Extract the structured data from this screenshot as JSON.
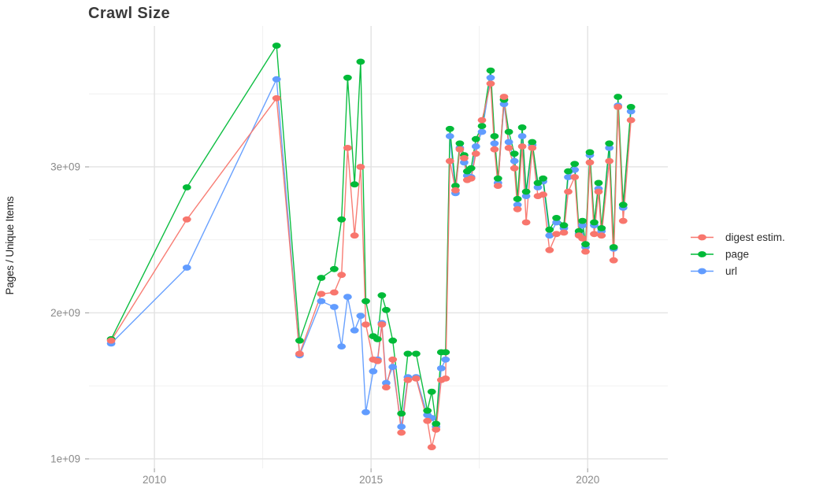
{
  "page": {
    "background": "#ffffff"
  },
  "legend": {
    "position": "right",
    "items": [
      {
        "label": "digest estim.",
        "color": "#F8766D"
      },
      {
        "label": "page",
        "color": "#00BA38"
      },
      {
        "label": "url",
        "color": "#619CFF"
      }
    ]
  },
  "chart_data": {
    "type": "line",
    "title": "Crawl Size",
    "xlabel": "",
    "ylabel": "Pages / Unique Items",
    "grid": true,
    "legend_position": "right",
    "x_axis": {
      "unit": "year",
      "lim": [
        2008.49,
        2021.85
      ],
      "ticks": [
        2010,
        2015,
        2020
      ],
      "tick_labels": [
        "2010",
        "2015",
        "2020"
      ],
      "minor_ticks": [
        2012.5,
        2017.5
      ]
    },
    "y_axis": {
      "unit": "pages / unique items",
      "lim": [
        935000000,
        3965000000
      ],
      "ticks": [
        1000000000,
        2000000000,
        3000000000
      ],
      "tick_labels": [
        "1e+09",
        "2e+09",
        "3e+09"
      ],
      "minor_ticks": [
        1500000000,
        2500000000,
        3500000000
      ]
    },
    "x": [
      2009.0,
      2010.75,
      2012.82,
      2013.35,
      2013.85,
      2014.15,
      2014.32,
      2014.46,
      2014.62,
      2014.76,
      2014.88,
      2015.05,
      2015.15,
      2015.25,
      2015.35,
      2015.5,
      2015.7,
      2015.85,
      2016.04,
      2016.3,
      2016.4,
      2016.5,
      2016.62,
      2016.72,
      2016.82,
      2016.95,
      2017.05,
      2017.15,
      2017.22,
      2017.31,
      2017.42,
      2017.56,
      2017.76,
      2017.85,
      2017.93,
      2018.07,
      2018.18,
      2018.31,
      2018.38,
      2018.49,
      2018.58,
      2018.72,
      2018.85,
      2018.97,
      2019.12,
      2019.28,
      2019.45,
      2019.55,
      2019.7,
      2019.8,
      2019.88,
      2019.95,
      2020.05,
      2020.15,
      2020.25,
      2020.32,
      2020.5,
      2020.6,
      2020.7,
      2020.82,
      2021.0
    ],
    "series": [
      {
        "name": "digest estim.",
        "color": "#F8766D",
        "values": [
          1810000000.0,
          2640000000.0,
          3470000000.0,
          1720000000.0,
          2130000000.0,
          2140000000.0,
          2260000000.0,
          3130000000.0,
          2530000000.0,
          3000000000.0,
          1920000000.0,
          1680000000.0,
          1670000000.0,
          1920000000.0,
          1490000000.0,
          1680000000.0,
          1180000000.0,
          1540000000.0,
          1550000000.0,
          1260000000.0,
          1080000000.0,
          1200000000.0,
          1540000000.0,
          1550000000.0,
          3040000000.0,
          2840000000.0,
          3120000000.0,
          3060000000.0,
          2910000000.0,
          2920000000.0,
          3090000000.0,
          3320000000.0,
          3570000000.0,
          3120000000.0,
          2870000000.0,
          3480000000.0,
          3130000000.0,
          2990000000.0,
          2710000000.0,
          3140000000.0,
          2620000000.0,
          3130000000.0,
          2800000000.0,
          2810000000.0,
          2430000000.0,
          2540000000.0,
          2550000000.0,
          2830000000.0,
          2930000000.0,
          2530000000.0,
          2510000000.0,
          2420000000.0,
          3030000000.0,
          2540000000.0,
          2830000000.0,
          2530000000.0,
          3040000000.0,
          2360000000.0,
          3410000000.0,
          2630000000.0,
          3320000000.0
        ]
      },
      {
        "name": "page",
        "color": "#00BA38",
        "values": [
          1820000000.0,
          2860000000.0,
          3830000000.0,
          1810000000.0,
          2240000000.0,
          2300000000.0,
          2640000000.0,
          3610000000.0,
          2880000000.0,
          3720000000.0,
          2080000000.0,
          1840000000.0,
          1820000000.0,
          2120000000.0,
          2020000000.0,
          1810000000.0,
          1310000000.0,
          1720000000.0,
          1720000000.0,
          1330000000.0,
          1460000000.0,
          1240000000.0,
          1730000000.0,
          1730000000.0,
          3260000000.0,
          2870000000.0,
          3160000000.0,
          3080000000.0,
          2970000000.0,
          2990000000.0,
          3190000000.0,
          3280000000.0,
          3660000000.0,
          3210000000.0,
          2920000000.0,
          3460000000.0,
          3240000000.0,
          3090000000.0,
          2780000000.0,
          3270000000.0,
          2830000000.0,
          3170000000.0,
          2890000000.0,
          2920000000.0,
          2570000000.0,
          2650000000.0,
          2600000000.0,
          2970000000.0,
          3020000000.0,
          2560000000.0,
          2630000000.0,
          2470000000.0,
          3100000000.0,
          2620000000.0,
          2890000000.0,
          2580000000.0,
          3160000000.0,
          2450000000.0,
          3480000000.0,
          2740000000.0,
          3410000000.0
        ]
      },
      {
        "name": "url",
        "color": "#619CFF",
        "values": [
          1790000000.0,
          2310000000.0,
          3600000000.0,
          1710000000.0,
          2080000000.0,
          2040000000.0,
          1770000000.0,
          2110000000.0,
          1880000000.0,
          1980000000.0,
          1320000000.0,
          1600000000.0,
          1680000000.0,
          1930000000.0,
          1520000000.0,
          1630000000.0,
          1220000000.0,
          1560000000.0,
          1560000000.0,
          1300000000.0,
          1280000000.0,
          1220000000.0,
          1620000000.0,
          1680000000.0,
          3210000000.0,
          2820000000.0,
          3130000000.0,
          3030000000.0,
          2940000000.0,
          2930000000.0,
          3140000000.0,
          3240000000.0,
          3610000000.0,
          3160000000.0,
          2890000000.0,
          3430000000.0,
          3170000000.0,
          3040000000.0,
          2740000000.0,
          3210000000.0,
          2800000000.0,
          3150000000.0,
          2860000000.0,
          2900000000.0,
          2530000000.0,
          2620000000.0,
          2580000000.0,
          2930000000.0,
          2980000000.0,
          2540000000.0,
          2600000000.0,
          2450000000.0,
          3080000000.0,
          2600000000.0,
          2850000000.0,
          2560000000.0,
          3130000000.0,
          2440000000.0,
          3420000000.0,
          2720000000.0,
          3380000000.0
        ]
      }
    ]
  }
}
